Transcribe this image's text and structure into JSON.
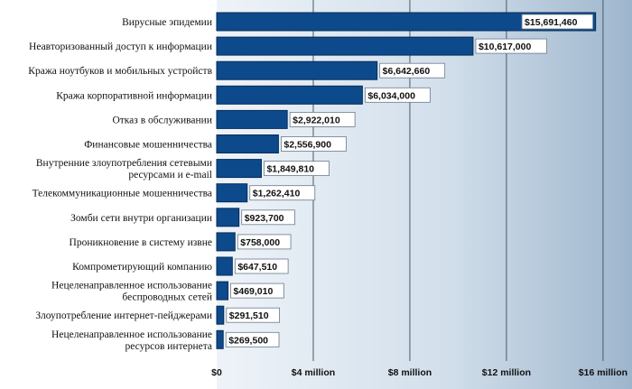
{
  "chart_data": {
    "type": "bar",
    "orientation": "horizontal",
    "categories": [
      [
        "Вирусные эпидемии"
      ],
      [
        "Неавторизованный доступ к информации"
      ],
      [
        "Кража ноутбуков и мобильных устройств"
      ],
      [
        "Кража корпоративной информации"
      ],
      [
        "Отказ в обслуживании"
      ],
      [
        "Финансовые мошенничества"
      ],
      [
        "Внутренние злоупотребления сетевыми",
        "ресурсами и e-mail"
      ],
      [
        "Телекоммуникационные мошенничества"
      ],
      [
        "Зомби сети внутри организации"
      ],
      [
        "Проникновение  в систему извне"
      ],
      [
        "Компрометирующий компанию"
      ],
      [
        "Нецеленаправленное использование",
        "беспроводных сетей"
      ],
      [
        "Злоупотребление интернет-пейджерами"
      ],
      [
        "Нецеленаправленное использование",
        "ресурсов интернета"
      ]
    ],
    "values": [
      15691460,
      10617000,
      6642660,
      6034000,
      2922010,
      2556900,
      1849810,
      1262410,
      923700,
      758000,
      647510,
      469010,
      291510,
      269500
    ],
    "value_labels": [
      "$15,691,460",
      "$10,617,000",
      "$6,642,660",
      "$6,034,000",
      "$2,922,010",
      "$2,556,900",
      "$1,849,810",
      "$1,262,410",
      "$923,700",
      "$758,000",
      "$647,510",
      "$469,010",
      "$291,510",
      "$269,500"
    ],
    "x_ticks": [
      0,
      4000000,
      8000000,
      12000000,
      16000000
    ],
    "x_tick_labels": [
      "$0",
      "$4 million",
      "$8 million",
      "$12 million",
      "$16 million"
    ],
    "xlim": [
      0,
      17200000
    ],
    "grid": true,
    "title": "",
    "xlabel": "",
    "ylabel": "",
    "colors": {
      "bar": "#0d4a8c",
      "plot_background_light": "#dfe9f3",
      "plot_background_dark": "#8ea9c3"
    }
  }
}
